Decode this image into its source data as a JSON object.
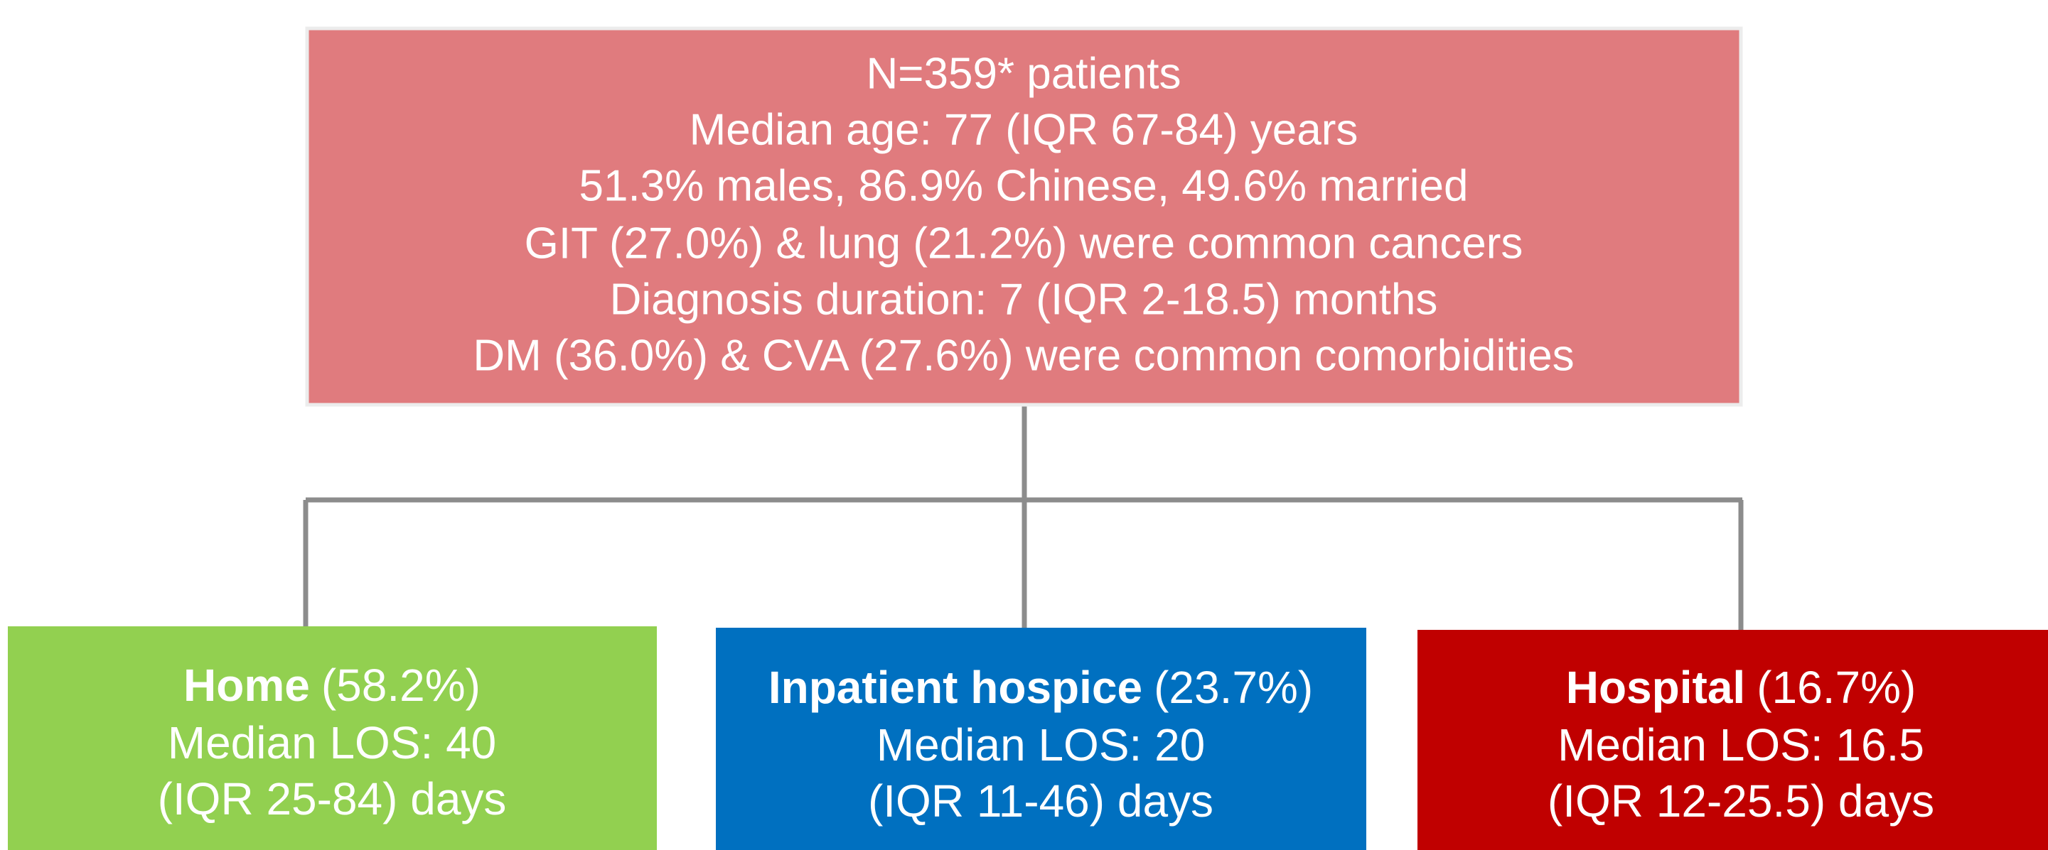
{
  "top_box": {
    "lines": [
      "N=359* patients",
      "Median age: 77 (IQR 67-84) years",
      "51.3% males, 86.9% Chinese, 49.6% married",
      "GIT (27.0%) & lung (21.2%) were common cancers",
      "Diagnosis duration: 7 (IQR 2-18.5) months",
      "DM (36.0%) & CVA (27.6%) were common comorbidities"
    ]
  },
  "outcomes": [
    {
      "name": "Home",
      "share": "(58.2%)",
      "los": "Median LOS: 40",
      "iqr": "(IQR 25-84) days"
    },
    {
      "name": "Inpatient hospice",
      "share": "(23.7%)",
      "los": "Median LOS: 20",
      "iqr": "(IQR 11-46) days"
    },
    {
      "name": "Hospital",
      "share": "(16.7%)",
      "los": "Median LOS: 16.5",
      "iqr": "(IQR 12-25.5) days"
    }
  ]
}
